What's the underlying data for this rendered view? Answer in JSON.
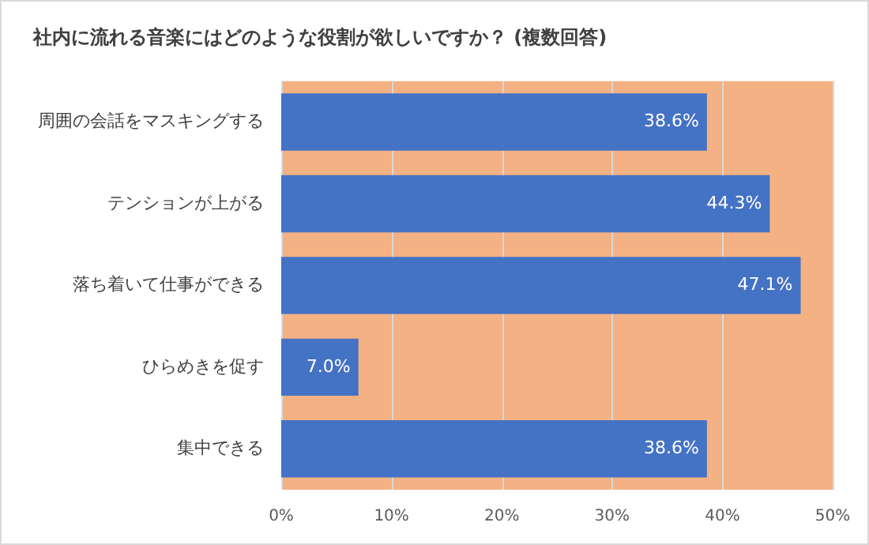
{
  "chart_data": {
    "type": "bar",
    "orientation": "horizontal",
    "title": "社内に流れる音楽にはどのような役割が欲しいですか？ (複数回答)",
    "categories": [
      "周囲の会話をマスキングする",
      "テンションが上がる",
      "落ち着いて仕事ができる",
      "ひらめきを促す",
      "集中できる"
    ],
    "values": [
      38.6,
      44.3,
      47.1,
      7.0,
      38.6
    ],
    "color": "#4472c4",
    "value_labels": [
      "38.6%",
      "44.3%",
      "47.1%",
      "7.0%",
      "38.6%"
    ],
    "xlim": [
      0,
      50
    ],
    "xticks": [
      {
        "value": 0,
        "label": "0%"
      },
      {
        "value": 10,
        "label": "10%"
      },
      {
        "value": 20,
        "label": "20%"
      },
      {
        "value": 30,
        "label": "30%"
      },
      {
        "value": 40,
        "label": "40%"
      },
      {
        "value": 50,
        "label": "50%"
      }
    ],
    "bands": [
      {
        "axis": "x",
        "from": 0,
        "to": 50,
        "color": "#f4b183"
      }
    ],
    "grid": "x",
    "legend": false
  }
}
